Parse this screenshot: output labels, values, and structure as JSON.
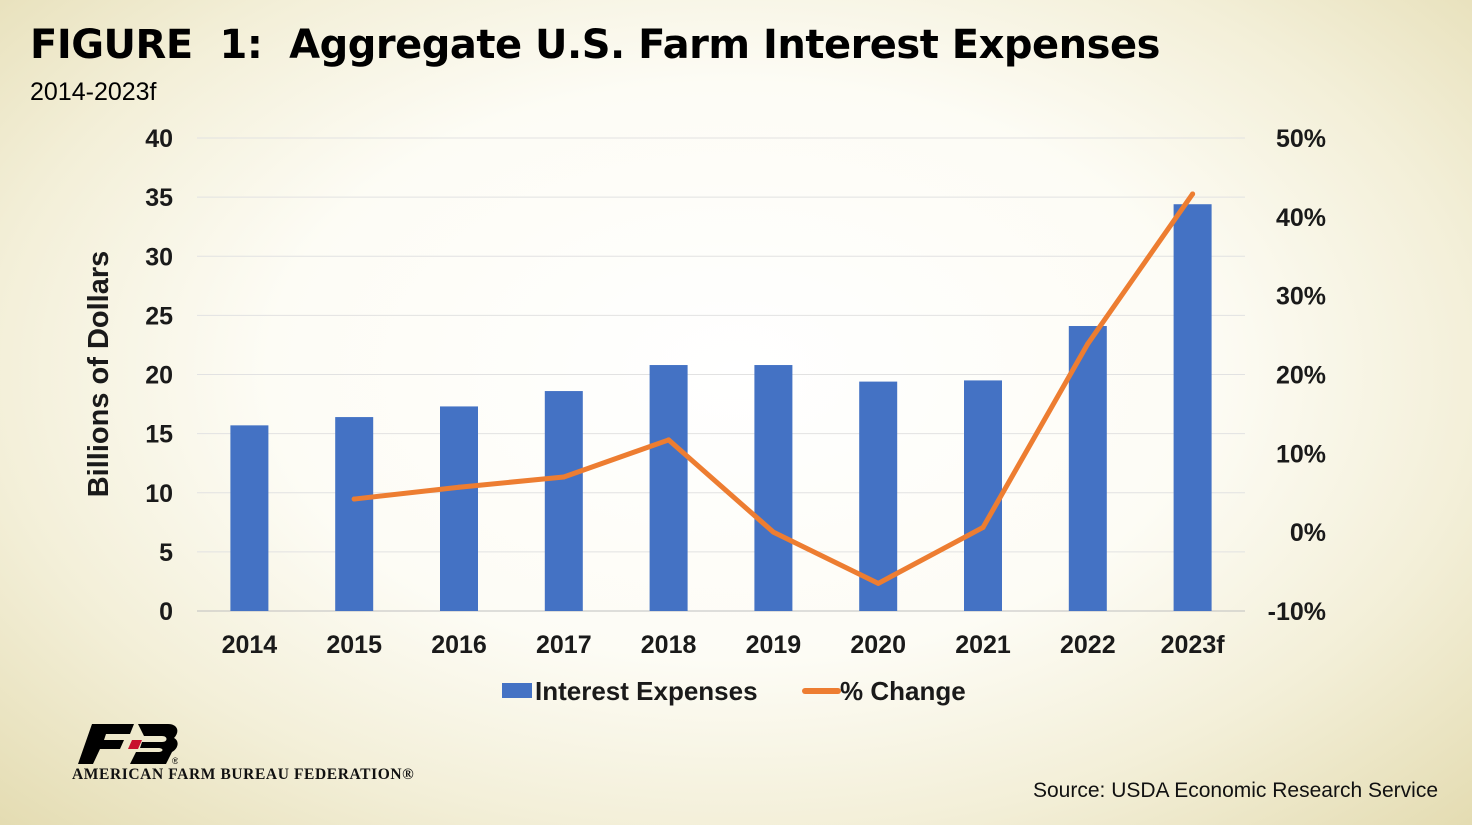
{
  "header": {
    "title": "FIGURE  1:  Aggregate U.S. Farm Interest Expenses",
    "subtitle": "2014-2023f"
  },
  "chart_data": {
    "type": "bar",
    "categories": [
      "2014",
      "2015",
      "2016",
      "2017",
      "2018",
      "2019",
      "2020",
      "2021",
      "2022",
      "2023f"
    ],
    "series": [
      {
        "name": "Interest Expenses",
        "type": "bar",
        "axis": "left",
        "color": "#4472C4",
        "values": [
          15.7,
          16.4,
          17.3,
          18.6,
          20.8,
          20.8,
          19.4,
          19.5,
          24.1,
          34.4
        ]
      },
      {
        "name": "% Change",
        "type": "line",
        "axis": "right",
        "color": "#ED7D31",
        "values": [
          null,
          4.2,
          5.7,
          7.0,
          11.7,
          0.0,
          -6.5,
          0.6,
          23.9,
          42.9
        ]
      }
    ],
    "y_left": {
      "label": "Billions of Dollars",
      "range": [
        0,
        40
      ],
      "ticks": [
        "0",
        "5",
        "10",
        "15",
        "20",
        "25",
        "30",
        "35",
        "40"
      ]
    },
    "y_right": {
      "range": [
        -10,
        50
      ],
      "ticks": [
        "-10%",
        "0%",
        "10%",
        "20%",
        "30%",
        "40%",
        "50%"
      ]
    },
    "grid": true,
    "legend": "bottom"
  },
  "footer": {
    "org_name": "AMERICAN FARM BUREAU FEDERATION®",
    "source": "Source: USDA Economic Research Service"
  }
}
